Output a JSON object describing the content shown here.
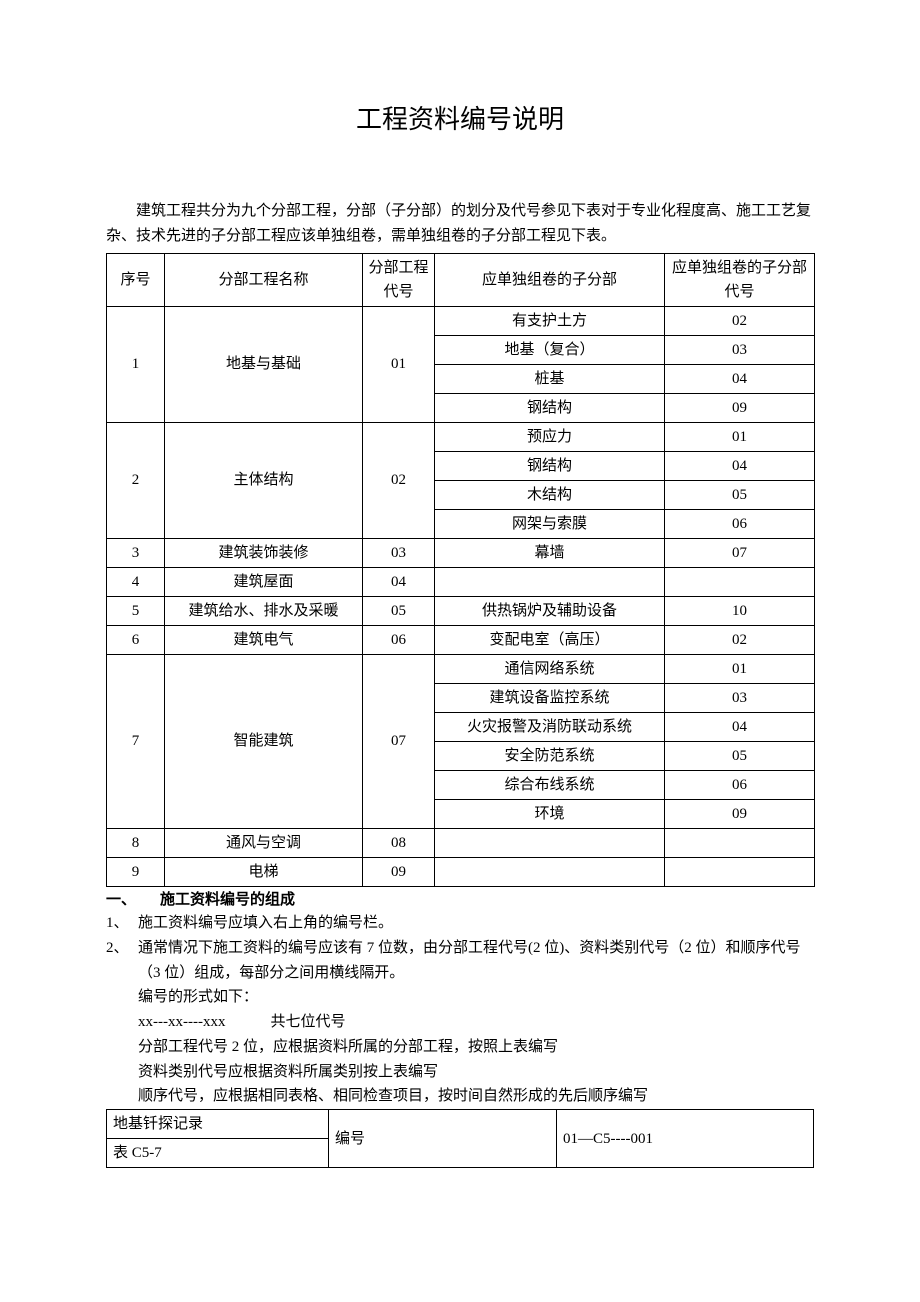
{
  "title": "工程资料编号说明",
  "intro": "建筑工程共分为九个分部工程，分部（子分部）的划分及代号参见下表对于专业化程度高、施工工艺复杂、技术先进的子分部工程应该单独组卷，需单独组卷的子分部工程见下表。",
  "table": {
    "headers": {
      "seq": "序号",
      "name": "分部工程名称",
      "code": "分部工程代号",
      "sub": "应单独组卷的子分部",
      "subcode": "应单独组卷的子分部代号"
    },
    "rows": [
      {
        "seq": "1",
        "name": "地基与基础",
        "code": "01",
        "subs": [
          {
            "sub": "有支护土方",
            "sc": "02"
          },
          {
            "sub": "地基（复合）",
            "sc": "03"
          },
          {
            "sub": "桩基",
            "sc": "04"
          },
          {
            "sub": "钢结构",
            "sc": "09"
          }
        ]
      },
      {
        "seq": "2",
        "name": "主体结构",
        "code": "02",
        "subs": [
          {
            "sub": "预应力",
            "sc": "01"
          },
          {
            "sub": "钢结构",
            "sc": "04"
          },
          {
            "sub": "木结构",
            "sc": "05"
          },
          {
            "sub": "网架与索膜",
            "sc": "06"
          }
        ]
      },
      {
        "seq": "3",
        "name": "建筑装饰装修",
        "code": "03",
        "subs": [
          {
            "sub": "幕墙",
            "sc": "07"
          }
        ]
      },
      {
        "seq": "4",
        "name": "建筑屋面",
        "code": "04",
        "subs": [
          {
            "sub": "",
            "sc": ""
          }
        ]
      },
      {
        "seq": "5",
        "name": "建筑给水、排水及采暖",
        "code": "05",
        "subs": [
          {
            "sub": "供热锅炉及辅助设备",
            "sc": "10"
          }
        ]
      },
      {
        "seq": "6",
        "name": "建筑电气",
        "code": "06",
        "subs": [
          {
            "sub": "变配电室（高压）",
            "sc": "02"
          }
        ]
      },
      {
        "seq": "7",
        "name": "智能建筑",
        "code": "07",
        "subs": [
          {
            "sub": "通信网络系统",
            "sc": "01"
          },
          {
            "sub": "建筑设备监控系统",
            "sc": "03"
          },
          {
            "sub": "火灾报警及消防联动系统",
            "sc": "04"
          },
          {
            "sub": "安全防范系统",
            "sc": "05"
          },
          {
            "sub": "综合布线系统",
            "sc": "06"
          },
          {
            "sub": "环境",
            "sc": "09"
          }
        ]
      },
      {
        "seq": "8",
        "name": "通风与空调",
        "code": "08",
        "subs": [
          {
            "sub": "",
            "sc": ""
          }
        ]
      },
      {
        "seq": "9",
        "name": "电梯",
        "code": "09",
        "subs": [
          {
            "sub": "",
            "sc": ""
          }
        ]
      }
    ]
  },
  "section1": {
    "num": "一、",
    "title": "施工资料编号的组成",
    "items": [
      {
        "n": "1、",
        "t": "施工资料编号应填入右上角的编号栏。"
      },
      {
        "n": "2、",
        "t": "通常情况下施工资料的编号应该有 7 位数，由分部工程代号(2 位)、资料类别代号（2 位）和顺序代号（3 位）组成，每部分之间用横线隔开。"
      }
    ],
    "sublines": [
      "编号的形式如下：",
      "xx---xx----xxx   共七位代号",
      "分部工程代号 2 位，应根据资料所属的分部工程，按照上表编写",
      "资料类别代号应根据资料所属类别按上表编写",
      "顺序代号，应根据相同表格、相同检查项目，按时间自然形成的先后顺序编写"
    ]
  },
  "smalltable": {
    "r1c1": "地基钎探记录",
    "r1c2": "编号",
    "r1c3": "01—C5----001",
    "r2c1": "表 C5-7"
  }
}
